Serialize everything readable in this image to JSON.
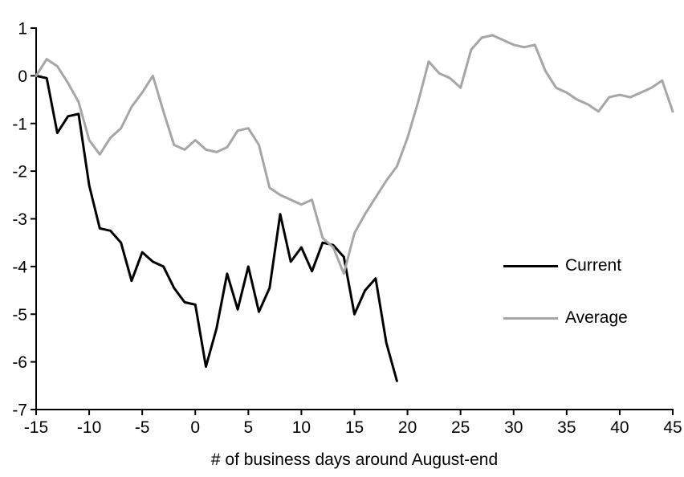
{
  "chart_data": {
    "type": "line",
    "title": "",
    "xlabel": "# of business days around August-end",
    "ylabel": "",
    "xlim": [
      -15,
      45
    ],
    "ylim": [
      -7,
      1
    ],
    "x_ticks": [
      -15,
      -10,
      -5,
      0,
      5,
      10,
      15,
      20,
      25,
      30,
      35,
      40,
      45
    ],
    "y_ticks": [
      1,
      0,
      -1,
      -2,
      -3,
      -4,
      -5,
      -6,
      -7
    ],
    "grid": false,
    "legend_position": "middle-right",
    "series": [
      {
        "name": "Current",
        "color": "#000000",
        "x": [
          -15,
          -14,
          -13,
          -12,
          -11,
          -10,
          -9,
          -8,
          -7,
          -6,
          -5,
          -4,
          -3,
          -2,
          -1,
          0,
          1,
          2,
          3,
          4,
          5,
          6,
          7,
          8,
          9,
          10,
          11,
          12,
          13,
          14,
          15,
          16,
          17,
          18,
          19
        ],
        "values": [
          0.0,
          -0.05,
          -1.2,
          -0.85,
          -0.8,
          -2.3,
          -3.2,
          -3.25,
          -3.5,
          -4.3,
          -3.7,
          -3.9,
          -4.0,
          -4.45,
          -4.75,
          -4.8,
          -6.1,
          -5.3,
          -4.15,
          -4.9,
          -4.0,
          -4.95,
          -4.45,
          -2.9,
          -3.9,
          -3.6,
          -4.1,
          -3.5,
          -3.55,
          -3.8,
          -5.0,
          -4.5,
          -4.25,
          -5.6,
          -6.4
        ]
      },
      {
        "name": "Average",
        "color": "#a6a6a6",
        "x": [
          -15,
          -14,
          -13,
          -12,
          -11,
          -10,
          -9,
          -8,
          -7,
          -6,
          -5,
          -4,
          -3,
          -2,
          -1,
          0,
          1,
          2,
          3,
          4,
          5,
          6,
          7,
          8,
          9,
          10,
          11,
          12,
          13,
          14,
          15,
          16,
          17,
          18,
          19,
          20,
          21,
          22,
          23,
          24,
          25,
          26,
          27,
          28,
          29,
          30,
          31,
          32,
          33,
          34,
          35,
          36,
          37,
          38,
          39,
          40,
          41,
          42,
          43,
          44,
          45
        ],
        "values": [
          0.0,
          0.35,
          0.2,
          -0.15,
          -0.55,
          -1.35,
          -1.65,
          -1.3,
          -1.1,
          -0.65,
          -0.35,
          0.0,
          -0.75,
          -1.45,
          -1.55,
          -1.35,
          -1.55,
          -1.6,
          -1.5,
          -1.15,
          -1.1,
          -1.45,
          -2.35,
          -2.5,
          -2.6,
          -2.7,
          -2.6,
          -3.4,
          -3.6,
          -4.15,
          -3.3,
          -2.9,
          -2.55,
          -2.2,
          -1.9,
          -1.3,
          -0.55,
          0.3,
          0.05,
          -0.05,
          -0.25,
          0.55,
          0.8,
          0.85,
          0.75,
          0.65,
          0.6,
          0.65,
          0.1,
          -0.25,
          -0.35,
          -0.5,
          -0.6,
          -0.75,
          -0.45,
          -0.4,
          -0.45,
          -0.35,
          -0.25,
          -0.1,
          -0.75
        ]
      }
    ]
  },
  "colors": {
    "background": "#ffffff",
    "axis": "#000000",
    "current_line": "#000000",
    "average_line": "#a6a6a6"
  }
}
